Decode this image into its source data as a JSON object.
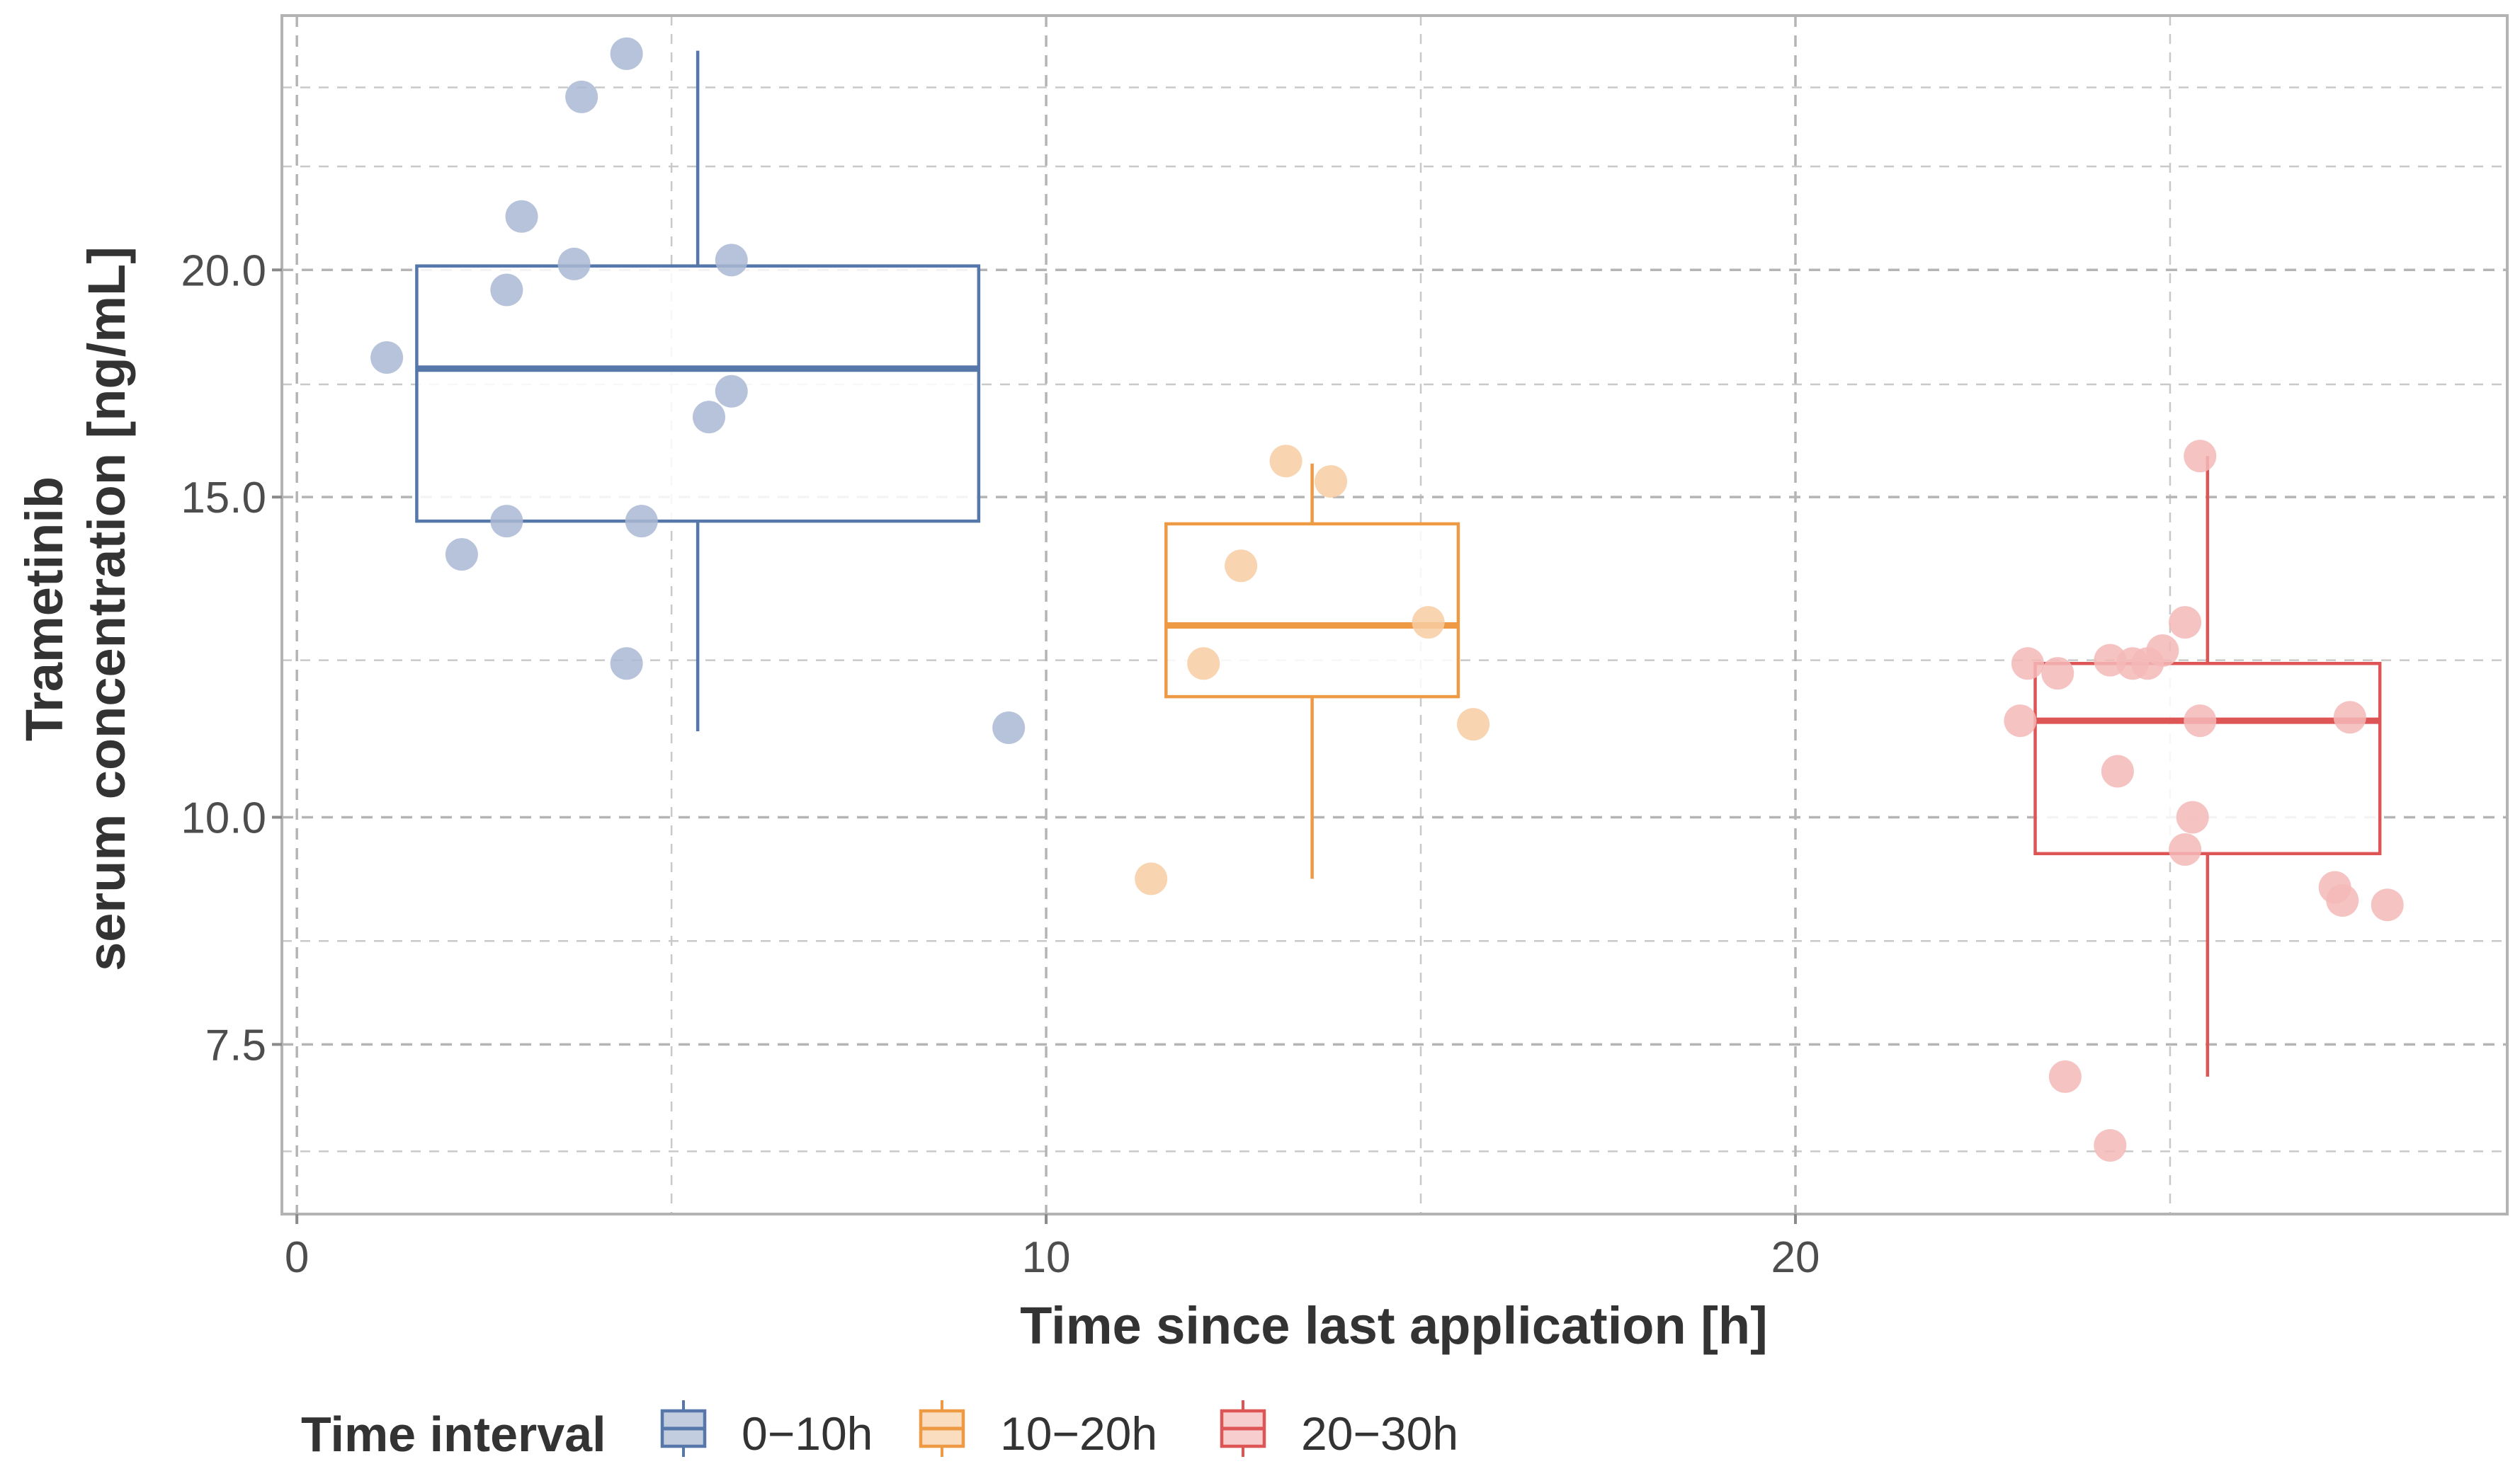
{
  "chart_data": {
    "type": "box+jitter",
    "title": "",
    "xlabel": "Time since last application [h]",
    "ylabel_lines": [
      "Trametinib",
      "serum concentration [ng/mL]"
    ],
    "x_scale": "linear",
    "y_scale": "log",
    "xlim": [
      -0.2,
      29.5
    ],
    "ylim": [
      6.05,
      27.6
    ],
    "x_ticks": [
      0,
      10,
      20
    ],
    "x_tick_labels": [
      "0",
      "10",
      "20"
    ],
    "x_minor_ticks": [
      5,
      15,
      25
    ],
    "y_ticks": [
      7.5,
      10.0,
      15.0,
      20.0
    ],
    "y_tick_labels": [
      "7.5",
      "10.0",
      "15.0",
      "20.0"
    ],
    "y_minor_ticks": [
      6.55,
      8.55,
      12.2,
      17.3,
      22.8,
      25.2
    ],
    "grid": true,
    "legend": {
      "title": "Time interval",
      "position": "bottom",
      "entries": [
        "0−10h",
        "10−20h",
        "20−30h"
      ]
    },
    "series": [
      {
        "name": "0−10h",
        "color": "#5577aa",
        "point_color": "#aab8d3",
        "box": {
          "x_from": 1.6,
          "x_to": 9.1,
          "center_x": 5.35,
          "q1": 14.55,
          "median": 17.65,
          "q3": 20.1,
          "whisker_low": 11.15,
          "whisker_high": 26.4
        },
        "points": [
          {
            "x": 1.2,
            "y": 17.9
          },
          {
            "x": 2.2,
            "y": 13.95
          },
          {
            "x": 2.8,
            "y": 14.55
          },
          {
            "x": 2.8,
            "y": 19.5
          },
          {
            "x": 3.0,
            "y": 21.4
          },
          {
            "x": 3.7,
            "y": 20.15
          },
          {
            "x": 3.8,
            "y": 24.9
          },
          {
            "x": 4.4,
            "y": 26.3
          },
          {
            "x": 4.4,
            "y": 12.15
          },
          {
            "x": 4.6,
            "y": 14.55
          },
          {
            "x": 5.5,
            "y": 16.6
          },
          {
            "x": 5.8,
            "y": 17.15
          },
          {
            "x": 5.8,
            "y": 20.25
          },
          {
            "x": 9.5,
            "y": 11.2
          }
        ]
      },
      {
        "name": "10−20h",
        "color": "#ee9944",
        "point_color": "#f8cda2",
        "box": {
          "x_from": 11.6,
          "x_to": 15.5,
          "center_x": 13.55,
          "q1": 11.65,
          "median": 12.75,
          "q3": 14.5,
          "whisker_low": 9.25,
          "whisker_high": 15.65
        },
        "points": [
          {
            "x": 11.4,
            "y": 9.25
          },
          {
            "x": 12.1,
            "y": 12.15
          },
          {
            "x": 12.6,
            "y": 13.75
          },
          {
            "x": 13.2,
            "y": 15.7
          },
          {
            "x": 13.8,
            "y": 15.3
          },
          {
            "x": 15.1,
            "y": 12.8
          },
          {
            "x": 15.7,
            "y": 11.25
          }
        ]
      },
      {
        "name": "20−30h",
        "color": "#dd5555",
        "point_color": "#f5b8b8",
        "box": {
          "x_from": 23.2,
          "x_to": 27.8,
          "center_x": 25.5,
          "q1": 9.55,
          "median": 11.3,
          "q3": 12.15,
          "whisker_low": 7.2,
          "whisker_high": 15.8
        },
        "points": [
          {
            "x": 23.0,
            "y": 11.3
          },
          {
            "x": 23.1,
            "y": 12.15
          },
          {
            "x": 23.5,
            "y": 12.0
          },
          {
            "x": 23.6,
            "y": 7.2
          },
          {
            "x": 24.2,
            "y": 6.6
          },
          {
            "x": 24.2,
            "y": 12.2
          },
          {
            "x": 24.3,
            "y": 10.6
          },
          {
            "x": 24.5,
            "y": 12.15
          },
          {
            "x": 24.7,
            "y": 12.15
          },
          {
            "x": 24.9,
            "y": 12.35
          },
          {
            "x": 25.2,
            "y": 12.8
          },
          {
            "x": 25.2,
            "y": 9.6
          },
          {
            "x": 25.3,
            "y": 10.0
          },
          {
            "x": 25.4,
            "y": 11.3
          },
          {
            "x": 25.4,
            "y": 15.8
          },
          {
            "x": 27.2,
            "y": 9.15
          },
          {
            "x": 27.3,
            "y": 9.0
          },
          {
            "x": 27.4,
            "y": 11.35
          },
          {
            "x": 27.9,
            "y": 8.95
          }
        ]
      }
    ]
  }
}
